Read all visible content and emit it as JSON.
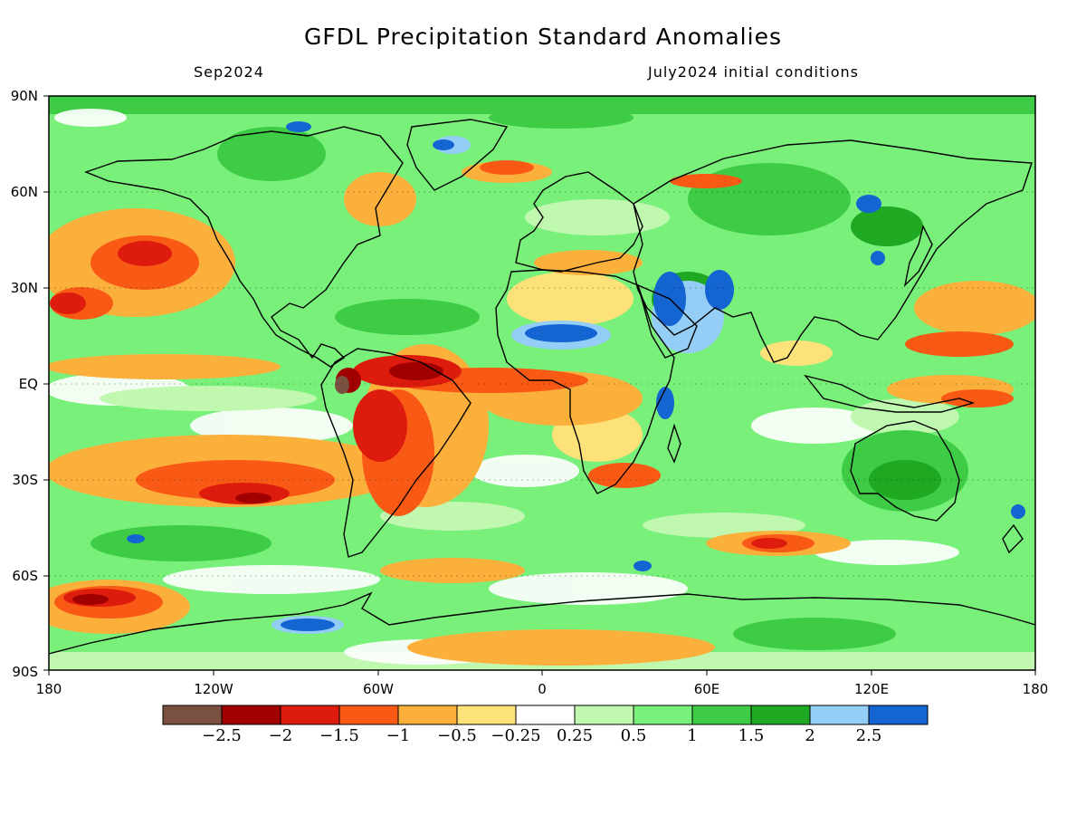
{
  "title": "GFDL Precipitation Standard Anomalies",
  "subtitle_left": "Sep2024",
  "subtitle_right": "July2024 initial conditions",
  "lat_ticks": [
    "90N",
    "60N",
    "30N",
    "EQ",
    "30S",
    "60S",
    "90S"
  ],
  "lon_ticks": [
    "180",
    "120W",
    "60W",
    "0",
    "60E",
    "120E",
    "180"
  ],
  "colorbar": {
    "colors": [
      "#7a5040",
      "#a00000",
      "#dd1c0d",
      "#f85a16",
      "#fbb03b",
      "#fde27a",
      "#ffffff",
      "#c0f8b0",
      "#78f07a",
      "#3ecb45",
      "#1fa822",
      "#94cdf5",
      "#1464d2"
    ],
    "labels": [
      "−2.5",
      "−2",
      "−1.5",
      "−1",
      "−0.5",
      "−0.25",
      "0.25",
      "0.5",
      "1",
      "1.5",
      "2",
      "2.5"
    ]
  },
  "palette": {
    "brown": "#7a5040",
    "darkred": "#a00000",
    "red": "#dd1c0d",
    "orange": "#f85a16",
    "lightorange": "#fbb03b",
    "yellow": "#fde27a",
    "white": "#ffffff",
    "lightgreen": "#c0f8b0",
    "green": "#78f07a",
    "midgreen": "#3ecb45",
    "darkgreen": "#1fa822",
    "lightblue": "#94cdf5",
    "blue": "#1464d2"
  }
}
